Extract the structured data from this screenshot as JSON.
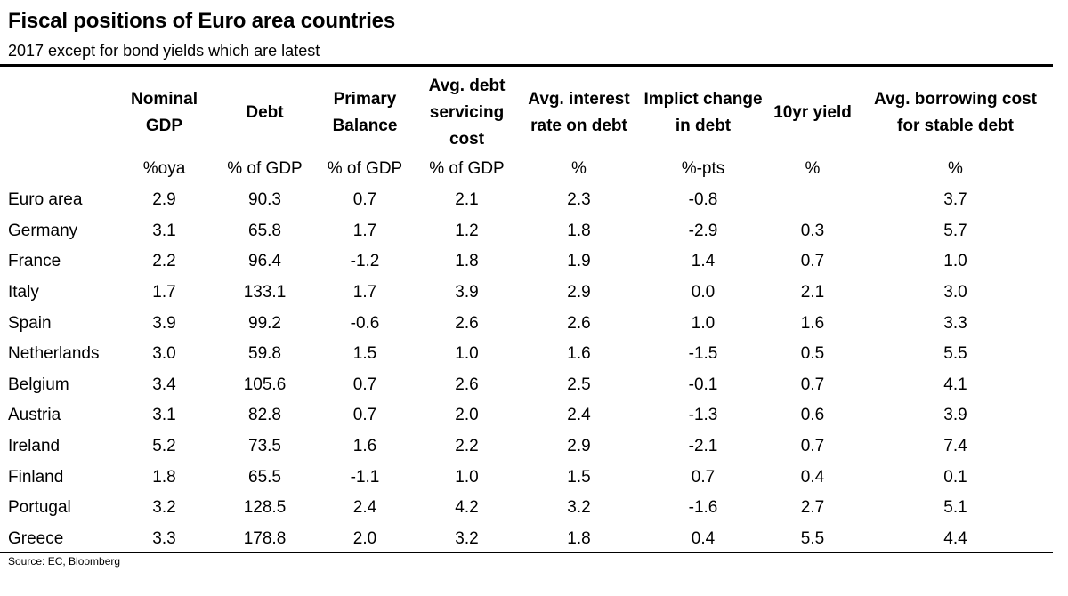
{
  "title": "Fiscal positions of Euro area countries",
  "subtitle": "2017 except for bond yields which are latest",
  "columns": [
    {
      "key": "gdp",
      "header": [
        "Nominal",
        "GDP"
      ],
      "unit": "%oya"
    },
    {
      "key": "debt",
      "header": [
        "Debt"
      ],
      "unit": "% of GDP"
    },
    {
      "key": "primary",
      "header": [
        "Primary",
        "Balance"
      ],
      "unit": "% of GDP"
    },
    {
      "key": "servicing",
      "header": [
        "Avg. debt",
        "servicing",
        "cost"
      ],
      "unit": "% of GDP"
    },
    {
      "key": "interest",
      "header": [
        "Avg. interest",
        "rate on debt"
      ],
      "unit": "%"
    },
    {
      "key": "change",
      "header": [
        "Implict change",
        "in debt"
      ],
      "unit": "%-pts"
    },
    {
      "key": "yield",
      "header": [
        "10yr yield"
      ],
      "unit": "%"
    },
    {
      "key": "borrowing",
      "header": [
        "Avg. borrowing cost",
        "for stable debt"
      ],
      "unit": "%"
    }
  ],
  "rows": [
    {
      "country": "Euro area",
      "values": [
        "2.9",
        "90.3",
        "0.7",
        "2.1",
        "2.3",
        "-0.8",
        "",
        "3.7"
      ]
    },
    {
      "country": "Germany",
      "values": [
        "3.1",
        "65.8",
        "1.7",
        "1.2",
        "1.8",
        "-2.9",
        "0.3",
        "5.7"
      ]
    },
    {
      "country": "France",
      "values": [
        "2.2",
        "96.4",
        "-1.2",
        "1.8",
        "1.9",
        "1.4",
        "0.7",
        "1.0"
      ]
    },
    {
      "country": "Italy",
      "values": [
        "1.7",
        "133.1",
        "1.7",
        "3.9",
        "2.9",
        "0.0",
        "2.1",
        "3.0"
      ]
    },
    {
      "country": "Spain",
      "values": [
        "3.9",
        "99.2",
        "-0.6",
        "2.6",
        "2.6",
        "1.0",
        "1.6",
        "3.3"
      ]
    },
    {
      "country": "Netherlands",
      "values": [
        "3.0",
        "59.8",
        "1.5",
        "1.0",
        "1.6",
        "-1.5",
        "0.5",
        "5.5"
      ]
    },
    {
      "country": "Belgium",
      "values": [
        "3.4",
        "105.6",
        "0.7",
        "2.6",
        "2.5",
        "-0.1",
        "0.7",
        "4.1"
      ]
    },
    {
      "country": "Austria",
      "values": [
        "3.1",
        "82.8",
        "0.7",
        "2.0",
        "2.4",
        "-1.3",
        "0.6",
        "3.9"
      ]
    },
    {
      "country": "Ireland",
      "values": [
        "5.2",
        "73.5",
        "1.6",
        "2.2",
        "2.9",
        "-2.1",
        "0.7",
        "7.4"
      ]
    },
    {
      "country": "Finland",
      "values": [
        "1.8",
        "65.5",
        "-1.1",
        "1.0",
        "1.5",
        "0.7",
        "0.4",
        "0.1"
      ]
    },
    {
      "country": "Portugal",
      "values": [
        "3.2",
        "128.5",
        "2.4",
        "4.2",
        "3.2",
        "-1.6",
        "2.7",
        "5.1"
      ]
    },
    {
      "country": "Greece",
      "values": [
        "3.3",
        "178.8",
        "2.0",
        "3.2",
        "1.8",
        "0.4",
        "5.5",
        "4.4"
      ]
    }
  ],
  "source": "Source: EC, Bloomberg"
}
